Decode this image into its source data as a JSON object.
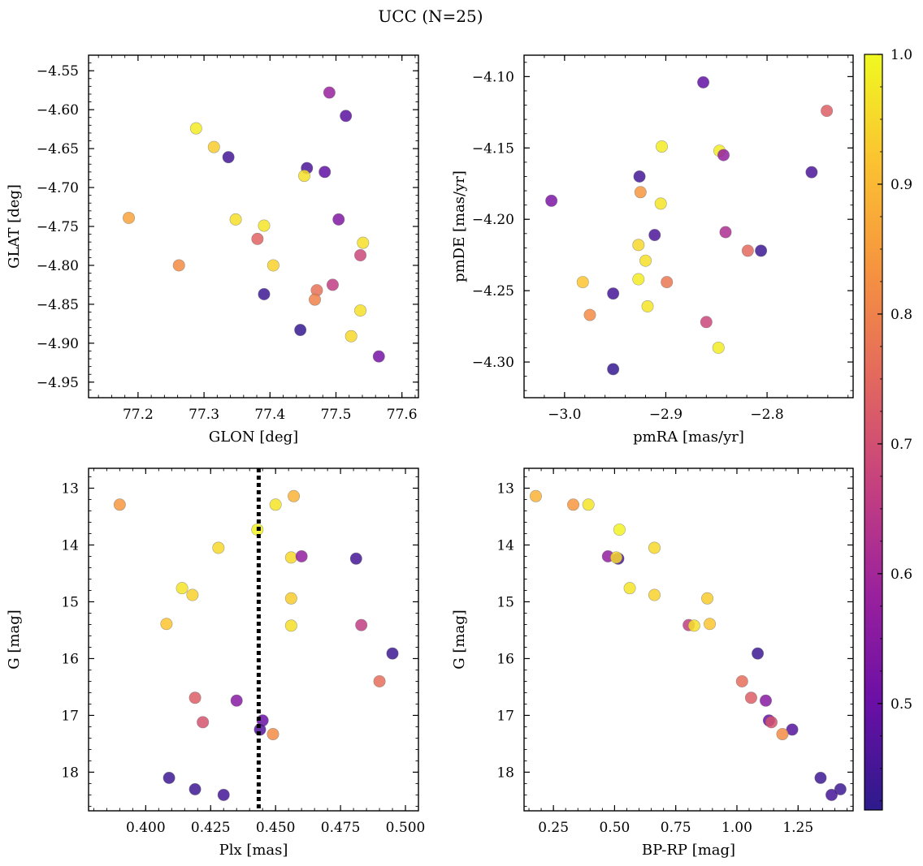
{
  "figure": {
    "title": "UCC (N=25)"
  },
  "colorbar": {
    "range": [
      0.418,
      1.0
    ],
    "ticks": [
      0.5,
      0.6,
      0.7,
      0.8,
      0.9,
      1.0
    ],
    "tick_labels": [
      "0.5",
      "0.6",
      "0.7",
      "0.8",
      "0.9",
      "1.0"
    ],
    "colormap": [
      "#2d1b8c",
      "#6a0fa6",
      "#9a219d",
      "#c5407f",
      "#e3685e",
      "#f6933f",
      "#fbc231",
      "#f0f921"
    ]
  },
  "chart_data": [
    {
      "type": "scatter",
      "id": "glon-glat",
      "xlabel": "GLON [deg]",
      "ylabel": "GLAT [deg]",
      "xlim": [
        77.125,
        77.625
      ],
      "ylim": [
        -4.97,
        -4.53
      ],
      "y_inverted": false,
      "xticks": [
        77.2,
        77.3,
        77.4,
        77.5,
        77.6
      ],
      "xtick_labels": [
        "77.2",
        "77.3",
        "77.4",
        "77.5",
        "77.6"
      ],
      "yticks": [
        -4.55,
        -4.6,
        -4.65,
        -4.7,
        -4.75,
        -4.8,
        -4.85,
        -4.9,
        -4.95
      ],
      "ytick_labels": [
        "−4.55",
        "−4.60",
        "−4.65",
        "−4.70",
        "−4.75",
        "−4.80",
        "−4.85",
        "−4.90",
        "−4.95"
      ],
      "points": [
        {
          "x": 77.49,
          "y": -4.578,
          "c": 0.58
        },
        {
          "x": 77.515,
          "y": -4.608,
          "c": 0.48
        },
        {
          "x": 77.288,
          "y": -4.624,
          "c": 0.98
        },
        {
          "x": 77.315,
          "y": -4.648,
          "c": 0.93
        },
        {
          "x": 77.337,
          "y": -4.661,
          "c": 0.45
        },
        {
          "x": 77.456,
          "y": -4.675,
          "c": 0.46
        },
        {
          "x": 77.483,
          "y": -4.68,
          "c": 0.49
        },
        {
          "x": 77.452,
          "y": -4.685,
          "c": 0.96
        },
        {
          "x": 77.186,
          "y": -4.739,
          "c": 0.86
        },
        {
          "x": 77.348,
          "y": -4.741,
          "c": 0.96
        },
        {
          "x": 77.504,
          "y": -4.741,
          "c": 0.54
        },
        {
          "x": 77.391,
          "y": -4.749,
          "c": 0.97
        },
        {
          "x": 77.381,
          "y": -4.766,
          "c": 0.74
        },
        {
          "x": 77.541,
          "y": -4.771,
          "c": 0.96
        },
        {
          "x": 77.537,
          "y": -4.787,
          "c": 0.68
        },
        {
          "x": 77.262,
          "y": -4.8,
          "c": 0.82
        },
        {
          "x": 77.405,
          "y": -4.8,
          "c": 0.94
        },
        {
          "x": 77.495,
          "y": -4.825,
          "c": 0.66
        },
        {
          "x": 77.471,
          "y": -4.832,
          "c": 0.77
        },
        {
          "x": 77.391,
          "y": -4.837,
          "c": 0.44
        },
        {
          "x": 77.468,
          "y": -4.844,
          "c": 0.8
        },
        {
          "x": 77.537,
          "y": -4.858,
          "c": 0.96
        },
        {
          "x": 77.446,
          "y": -4.883,
          "c": 0.43
        },
        {
          "x": 77.523,
          "y": -4.891,
          "c": 0.95
        },
        {
          "x": 77.565,
          "y": -4.917,
          "c": 0.52
        }
      ]
    },
    {
      "type": "scatter",
      "id": "pm",
      "xlabel": "pmRA [mas/yr]",
      "ylabel": "pmDE [mas/yr]",
      "xlim": [
        -3.04,
        -2.715
      ],
      "ylim": [
        -4.325,
        -4.085
      ],
      "y_inverted": false,
      "xticks": [
        -3.0,
        -2.9,
        -2.8
      ],
      "xtick_labels": [
        "−3.0",
        "−2.9",
        "−2.8"
      ],
      "yticks": [
        -4.1,
        -4.15,
        -4.2,
        -4.25,
        -4.3
      ],
      "ytick_labels": [
        "−4.10",
        "−4.15",
        "−4.20",
        "−4.25",
        "−4.30"
      ],
      "points": [
        {
          "x": -2.863,
          "y": -4.104,
          "c": 0.49
        },
        {
          "x": -2.741,
          "y": -4.124,
          "c": 0.73
        },
        {
          "x": -2.904,
          "y": -4.149,
          "c": 0.98
        },
        {
          "x": -2.847,
          "y": -4.152,
          "c": 0.98
        },
        {
          "x": -2.843,
          "y": -4.155,
          "c": 0.57
        },
        {
          "x": -2.756,
          "y": -4.167,
          "c": 0.46
        },
        {
          "x": -2.926,
          "y": -4.17,
          "c": 0.45
        },
        {
          "x": -2.925,
          "y": -4.181,
          "c": 0.84
        },
        {
          "x": -3.013,
          "y": -4.187,
          "c": 0.53
        },
        {
          "x": -2.905,
          "y": -4.189,
          "c": 0.97
        },
        {
          "x": -2.911,
          "y": -4.211,
          "c": 0.46
        },
        {
          "x": -2.841,
          "y": -4.209,
          "c": 0.62
        },
        {
          "x": -2.927,
          "y": -4.218,
          "c": 0.95
        },
        {
          "x": -2.819,
          "y": -4.222,
          "c": 0.75
        },
        {
          "x": -2.806,
          "y": -4.222,
          "c": 0.44
        },
        {
          "x": -2.92,
          "y": -4.229,
          "c": 0.96
        },
        {
          "x": -2.927,
          "y": -4.242,
          "c": 0.98
        },
        {
          "x": -2.982,
          "y": -4.244,
          "c": 0.92
        },
        {
          "x": -2.899,
          "y": -4.244,
          "c": 0.78
        },
        {
          "x": -2.952,
          "y": -4.252,
          "c": 0.45
        },
        {
          "x": -2.918,
          "y": -4.261,
          "c": 0.97
        },
        {
          "x": -2.975,
          "y": -4.267,
          "c": 0.82
        },
        {
          "x": -2.86,
          "y": -4.272,
          "c": 0.68
        },
        {
          "x": -2.848,
          "y": -4.29,
          "c": 0.98
        },
        {
          "x": -2.952,
          "y": -4.305,
          "c": 0.43
        }
      ]
    },
    {
      "type": "scatter",
      "id": "plx-g",
      "xlabel": "Plx [mas]",
      "ylabel": "G [mag]",
      "xlim": [
        0.378,
        0.505
      ],
      "ylim": [
        18.68,
        12.65
      ],
      "y_inverted": true,
      "xticks": [
        0.4,
        0.425,
        0.45,
        0.475,
        0.5
      ],
      "xtick_labels": [
        "0.400",
        "0.425",
        "0.450",
        "0.475",
        "0.500"
      ],
      "yticks": [
        13,
        14,
        15,
        16,
        17,
        18
      ],
      "ytick_labels": [
        "13",
        "14",
        "15",
        "16",
        "17",
        "18"
      ],
      "vline": {
        "x": 0.4435,
        "style": "dotted"
      },
      "points": [
        {
          "x": 0.39,
          "y": 13.29,
          "c": 0.84
        },
        {
          "x": 0.457,
          "y": 13.14,
          "c": 0.89
        },
        {
          "x": 0.45,
          "y": 13.29,
          "c": 0.97
        },
        {
          "x": 0.443,
          "y": 13.73,
          "c": 0.99
        },
        {
          "x": 0.428,
          "y": 14.05,
          "c": 0.95
        },
        {
          "x": 0.456,
          "y": 14.22,
          "c": 0.95
        },
        {
          "x": 0.46,
          "y": 14.2,
          "c": 0.57
        },
        {
          "x": 0.481,
          "y": 14.24,
          "c": 0.45
        },
        {
          "x": 0.414,
          "y": 14.76,
          "c": 0.97
        },
        {
          "x": 0.418,
          "y": 14.88,
          "c": 0.94
        },
        {
          "x": 0.456,
          "y": 14.94,
          "c": 0.93
        },
        {
          "x": 0.408,
          "y": 15.39,
          "c": 0.92
        },
        {
          "x": 0.456,
          "y": 15.42,
          "c": 0.96
        },
        {
          "x": 0.483,
          "y": 15.41,
          "c": 0.66
        },
        {
          "x": 0.495,
          "y": 15.91,
          "c": 0.44
        },
        {
          "x": 0.49,
          "y": 16.4,
          "c": 0.76
        },
        {
          "x": 0.419,
          "y": 16.69,
          "c": 0.73
        },
        {
          "x": 0.435,
          "y": 16.74,
          "c": 0.55
        },
        {
          "x": 0.422,
          "y": 17.12,
          "c": 0.71
        },
        {
          "x": 0.445,
          "y": 17.09,
          "c": 0.5
        },
        {
          "x": 0.444,
          "y": 17.25,
          "c": 0.47
        },
        {
          "x": 0.449,
          "y": 17.33,
          "c": 0.82
        },
        {
          "x": 0.409,
          "y": 18.1,
          "c": 0.44
        },
        {
          "x": 0.419,
          "y": 18.3,
          "c": 0.44
        },
        {
          "x": 0.43,
          "y": 18.4,
          "c": 0.45
        }
      ]
    },
    {
      "type": "scatter",
      "id": "cmd",
      "xlabel": "BP-RP [mag]",
      "ylabel": "G [mag]",
      "xlim": [
        0.13,
        1.475
      ],
      "ylim": [
        18.68,
        12.65
      ],
      "y_inverted": true,
      "xticks": [
        0.25,
        0.5,
        0.75,
        1.0,
        1.25
      ],
      "xtick_labels": [
        "0.25",
        "0.50",
        "0.75",
        "1.00",
        "1.25"
      ],
      "yticks": [
        13,
        14,
        15,
        16,
        17,
        18
      ],
      "ytick_labels": [
        "13",
        "14",
        "15",
        "16",
        "17",
        "18"
      ],
      "points": [
        {
          "x": 0.178,
          "y": 13.14,
          "c": 0.89
        },
        {
          "x": 0.331,
          "y": 13.29,
          "c": 0.84
        },
        {
          "x": 0.393,
          "y": 13.29,
          "c": 0.97
        },
        {
          "x": 0.52,
          "y": 13.73,
          "c": 0.99
        },
        {
          "x": 0.663,
          "y": 14.05,
          "c": 0.95
        },
        {
          "x": 0.473,
          "y": 14.2,
          "c": 0.57
        },
        {
          "x": 0.515,
          "y": 14.24,
          "c": 0.45
        },
        {
          "x": 0.507,
          "y": 14.22,
          "c": 0.95
        },
        {
          "x": 0.562,
          "y": 14.76,
          "c": 0.97
        },
        {
          "x": 0.663,
          "y": 14.88,
          "c": 0.94
        },
        {
          "x": 0.879,
          "y": 14.94,
          "c": 0.93
        },
        {
          "x": 0.803,
          "y": 15.41,
          "c": 0.66
        },
        {
          "x": 0.825,
          "y": 15.42,
          "c": 0.96
        },
        {
          "x": 0.889,
          "y": 15.39,
          "c": 0.92
        },
        {
          "x": 1.085,
          "y": 15.91,
          "c": 0.44
        },
        {
          "x": 1.021,
          "y": 16.4,
          "c": 0.76
        },
        {
          "x": 1.058,
          "y": 16.69,
          "c": 0.73
        },
        {
          "x": 1.118,
          "y": 16.74,
          "c": 0.55
        },
        {
          "x": 1.131,
          "y": 17.09,
          "c": 0.5
        },
        {
          "x": 1.141,
          "y": 17.12,
          "c": 0.71
        },
        {
          "x": 1.226,
          "y": 17.25,
          "c": 0.47
        },
        {
          "x": 1.186,
          "y": 17.33,
          "c": 0.82
        },
        {
          "x": 1.342,
          "y": 18.1,
          "c": 0.44
        },
        {
          "x": 1.423,
          "y": 18.3,
          "c": 0.44
        },
        {
          "x": 1.387,
          "y": 18.4,
          "c": 0.45
        }
      ]
    }
  ]
}
